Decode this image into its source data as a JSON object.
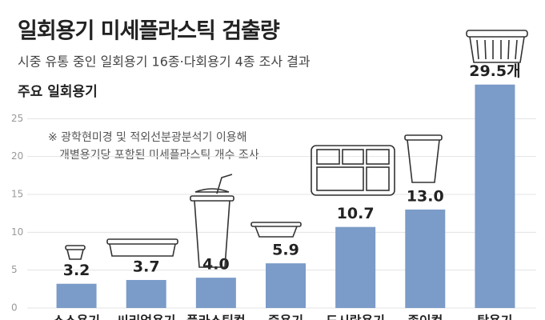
{
  "chart_data": {
    "type": "bar",
    "title": "일회용기 미세플라스틱 검출량",
    "subtitle": "시중 유통 중인 일회용기 16종·다회용기 4종 조사 결과",
    "y_label": "주요 일회용기",
    "annotation": [
      "※ 광학현미경 및 적외선분광분석기 이용해",
      "개별용기당 포함된 미세플라스틱 개수 조사"
    ],
    "categories": [
      "소스용기",
      "씨리얼용기",
      "플라스틱컵",
      "죽용기",
      "도시락용기",
      "종이컵",
      "탕용기"
    ],
    "values": [
      3.2,
      3.7,
      4.0,
      5.9,
      10.7,
      13.0,
      29.5
    ],
    "value_labels": [
      "3.2",
      "3.7",
      "4.0",
      "5.9",
      "10.7",
      "13.0",
      "29.5개"
    ],
    "color": "#7b9bc8",
    "ylim": [
      0,
      30
    ],
    "yticks": [
      0,
      5,
      10,
      15,
      20,
      25
    ],
    "grid": true
  }
}
